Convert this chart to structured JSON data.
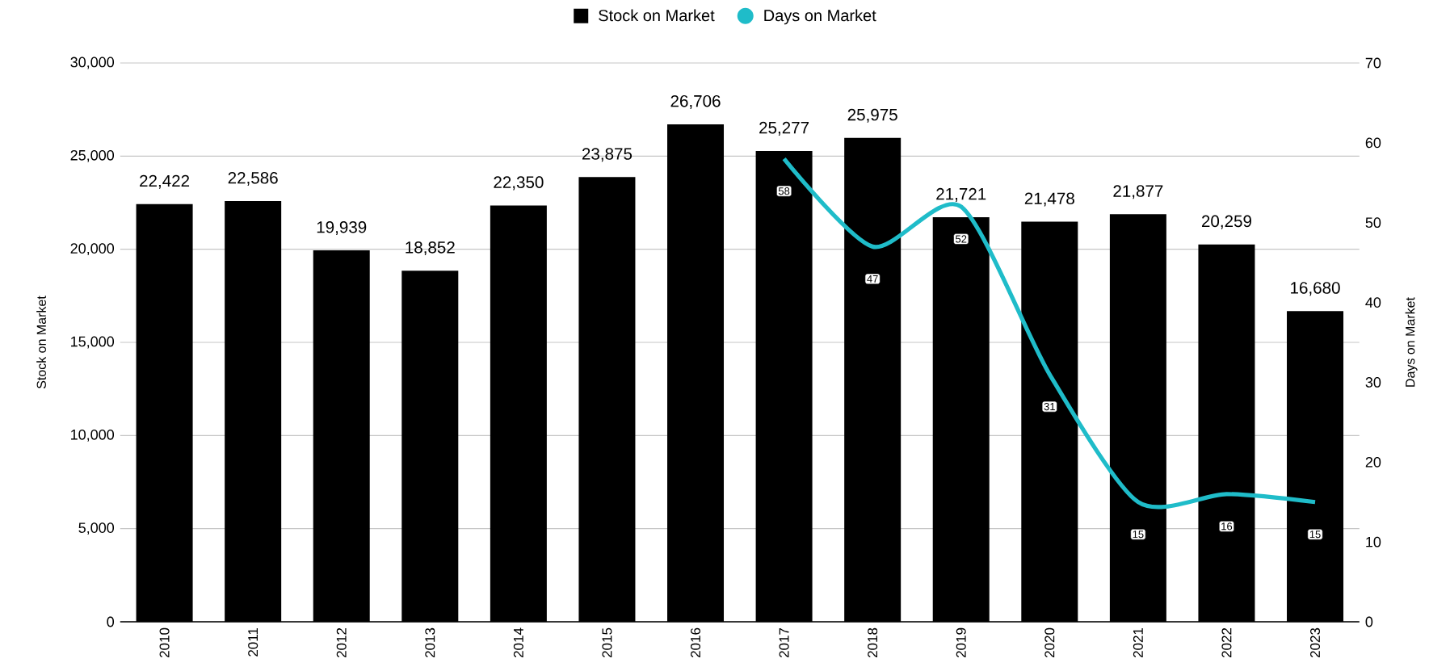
{
  "chart_data": {
    "type": "bar",
    "categories": [
      "2010",
      "2011",
      "2012",
      "2013",
      "2014",
      "2015",
      "2016",
      "2017",
      "2018",
      "2019",
      "2020",
      "2021",
      "2022",
      "2023"
    ],
    "series": [
      {
        "name": "Stock on Market",
        "color": "#000000",
        "values": [
          22422,
          22586,
          19939,
          18852,
          22350,
          23875,
          26706,
          25277,
          25975,
          21721,
          21478,
          21877,
          20259,
          16680
        ],
        "value_labels": [
          "22,422",
          "22,586",
          "19,939",
          "18,852",
          "22,350",
          "23,875",
          "26,706",
          "25,277",
          "25,975",
          "21,721",
          "21,478",
          "21,877",
          "20,259",
          "16,680"
        ]
      },
      {
        "name": "Days on Market",
        "type": "line",
        "axis": "y2",
        "color": "#1fbcc9",
        "values": [
          null,
          null,
          null,
          null,
          null,
          null,
          null,
          58,
          47,
          52,
          31,
          15,
          16,
          15
        ]
      }
    ],
    "ylabel": "Stock on Market",
    "y2label": "Days on Market",
    "ylim": [
      0,
      30000
    ],
    "yticks": [
      0,
      {
        "value": 5000,
        "label": "5,000"
      },
      {
        "value": 10000,
        "label": "10,000"
      },
      {
        "value": 15000,
        "label": "15,000"
      },
      {
        "value": 20000,
        "label": "20,000"
      },
      {
        "value": 25000,
        "label": "25,000"
      },
      {
        "value": 30000,
        "label": "30,000"
      }
    ],
    "y2lim": [
      0,
      70
    ],
    "y2ticks": [
      0,
      10,
      20,
      30,
      40,
      50,
      60,
      70
    ],
    "grid": "y",
    "legend": "top",
    "data_labels": true
  }
}
